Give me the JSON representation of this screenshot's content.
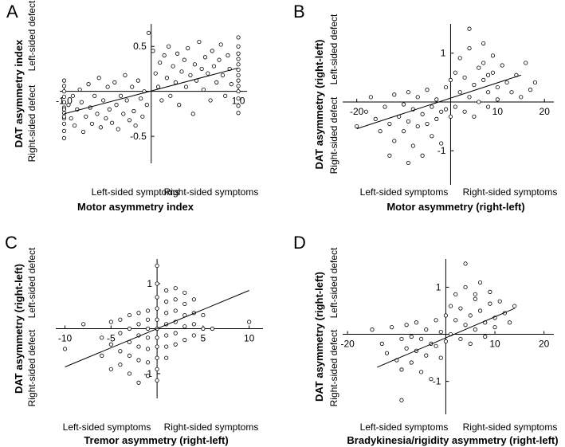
{
  "chart_data": [
    {
      "type": "scatter",
      "panel_label": "A",
      "ylabel": "DAT asymmetry index",
      "xlabel": "Motor asymmetry index",
      "y_pos_note": "Left-sided defect",
      "y_neg_note": "Right-sided defect",
      "x_neg_note": "Left-sided symptoms",
      "x_pos_note": "Right-sided symptoms",
      "xlim": [
        -1.05,
        1.1
      ],
      "ylim": [
        -0.8,
        0.75
      ],
      "x_ticks": [
        {
          "value": -1.0,
          "label": "-1.0"
        },
        {
          "value": 1.0,
          "label": "1.0"
        }
      ],
      "y_ticks": [
        {
          "value": 0.5,
          "label": "0.5"
        },
        {
          "value": -0.5,
          "label": "-0.5"
        }
      ],
      "fit_line": {
        "x": [
          -1.0,
          1.0
        ],
        "y": [
          -0.25,
          0.26
        ]
      },
      "points": [
        [
          -1.0,
          -0.52
        ],
        [
          -1.0,
          -0.44
        ],
        [
          -1.0,
          -0.36
        ],
        [
          -1.0,
          -0.3
        ],
        [
          -1.0,
          -0.24
        ],
        [
          -1.0,
          -0.18
        ],
        [
          -1.0,
          -0.12
        ],
        [
          -1.0,
          -0.06
        ],
        [
          -1.0,
          0.0
        ],
        [
          -1.0,
          0.06
        ],
        [
          -1.0,
          0.12
        ],
        [
          -1.0,
          -0.28
        ],
        [
          -1.0,
          -0.2
        ],
        [
          -0.95,
          -0.15
        ],
        [
          -0.92,
          -0.3
        ],
        [
          -0.9,
          -0.05
        ],
        [
          -0.88,
          -0.38
        ],
        [
          -0.85,
          -0.2
        ],
        [
          -0.82,
          0.02
        ],
        [
          -0.8,
          -0.12
        ],
        [
          -0.78,
          -0.45
        ],
        [
          -0.75,
          -0.28
        ],
        [
          -0.72,
          0.08
        ],
        [
          -0.7,
          -0.18
        ],
        [
          -0.68,
          -0.36
        ],
        [
          -0.65,
          -0.05
        ],
        [
          -0.62,
          -0.25
        ],
        [
          -0.6,
          0.15
        ],
        [
          -0.58,
          -0.4
        ],
        [
          -0.55,
          -0.1
        ],
        [
          -0.52,
          -0.3
        ],
        [
          -0.5,
          0.05
        ],
        [
          -0.48,
          -0.2
        ],
        [
          -0.45,
          -0.35
        ],
        [
          -0.42,
          0.1
        ],
        [
          -0.4,
          -0.15
        ],
        [
          -0.38,
          -0.42
        ],
        [
          -0.35,
          -0.05
        ],
        [
          -0.32,
          -0.25
        ],
        [
          -0.3,
          0.18
        ],
        [
          -0.28,
          -0.1
        ],
        [
          -0.25,
          -0.32
        ],
        [
          -0.22,
          0.05
        ],
        [
          -0.2,
          -0.22
        ],
        [
          -0.18,
          -0.38
        ],
        [
          -0.15,
          0.12
        ],
        [
          -0.12,
          -0.08
        ],
        [
          -0.1,
          -0.28
        ],
        [
          -0.08,
          0.0
        ],
        [
          -0.05,
          -0.15
        ],
        [
          -0.03,
          0.65
        ],
        [
          0.02,
          0.45
        ],
        [
          0.05,
          0.2
        ],
        [
          0.08,
          0.05
        ],
        [
          0.1,
          0.32
        ],
        [
          0.12,
          -0.1
        ],
        [
          0.15,
          0.4
        ],
        [
          0.18,
          0.15
        ],
        [
          0.2,
          0.5
        ],
        [
          0.22,
          -0.05
        ],
        [
          0.25,
          0.28
        ],
        [
          0.28,
          0.1
        ],
        [
          0.3,
          0.42
        ],
        [
          0.32,
          -0.15
        ],
        [
          0.35,
          0.22
        ],
        [
          0.38,
          0.35
        ],
        [
          0.4,
          0.05
        ],
        [
          0.42,
          0.48
        ],
        [
          0.45,
          0.18
        ],
        [
          0.48,
          -0.25
        ],
        [
          0.5,
          0.3
        ],
        [
          0.52,
          0.12
        ],
        [
          0.55,
          0.55
        ],
        [
          0.58,
          0.25
        ],
        [
          0.6,
          0.02
        ],
        [
          0.62,
          0.38
        ],
        [
          0.65,
          0.2
        ],
        [
          0.68,
          -0.1
        ],
        [
          0.7,
          0.45
        ],
        [
          0.72,
          0.28
        ],
        [
          0.75,
          0.1
        ],
        [
          0.78,
          0.35
        ],
        [
          0.8,
          0.52
        ],
        [
          0.82,
          0.18
        ],
        [
          0.85,
          -0.05
        ],
        [
          0.88,
          0.4
        ],
        [
          0.9,
          0.25
        ],
        [
          0.92,
          0.08
        ],
        [
          1.0,
          0.6
        ],
        [
          1.0,
          0.5
        ],
        [
          1.0,
          0.42
        ],
        [
          1.0,
          0.36
        ],
        [
          1.0,
          0.3
        ],
        [
          1.0,
          0.24
        ],
        [
          1.0,
          0.18
        ],
        [
          1.0,
          0.12
        ],
        [
          1.0,
          0.06
        ],
        [
          1.0,
          0.0
        ],
        [
          1.0,
          -0.08
        ],
        [
          1.0,
          -0.16
        ],
        [
          1.0,
          -0.24
        ]
      ]
    },
    {
      "type": "scatter",
      "panel_label": "B",
      "ylabel": "DAT asymmetry (right-left)",
      "xlabel": "Motor asymmetry (right-left)",
      "y_pos_note": "Left-sided defect",
      "y_neg_note": "Right-sided defect",
      "x_neg_note": "Left-sided symptoms",
      "x_pos_note": "Right-sided symptoms",
      "xlim": [
        -23,
        22
      ],
      "ylim": [
        -1.7,
        1.6
      ],
      "x_ticks": [
        {
          "value": -20,
          "label": "-20"
        },
        {
          "value": 10,
          "label": "10"
        },
        {
          "value": 20,
          "label": "20"
        }
      ],
      "y_ticks": [
        {
          "value": 1,
          "label": "1"
        },
        {
          "value": -1,
          "label": "-1"
        }
      ],
      "fit_line": {
        "x": [
          -20,
          15
        ],
        "y": [
          -0.55,
          0.55
        ]
      },
      "points": [
        [
          -20,
          -0.5
        ],
        [
          -18,
          -0.2
        ],
        [
          -17,
          0.1
        ],
        [
          -16,
          -0.35
        ],
        [
          -15,
          -0.6
        ],
        [
          -14,
          -0.1
        ],
        [
          -13,
          -0.45
        ],
        [
          -12,
          0.15
        ],
        [
          -12,
          -0.8
        ],
        [
          -11,
          -0.3
        ],
        [
          -10,
          -0.05
        ],
        [
          -10,
          -0.6
        ],
        [
          -9,
          0.2
        ],
        [
          -9,
          -0.4
        ],
        [
          -8,
          -0.15
        ],
        [
          -8,
          -0.9
        ],
        [
          -7,
          0.1
        ],
        [
          -7,
          -0.5
        ],
        [
          -6,
          -0.25
        ],
        [
          -6,
          -1.1
        ],
        [
          -5,
          0.25
        ],
        [
          -5,
          -0.45
        ],
        [
          -4,
          -0.1
        ],
        [
          -4,
          -0.7
        ],
        [
          -3,
          0.05
        ],
        [
          -3,
          -0.35
        ],
        [
          -2,
          -0.2
        ],
        [
          -2,
          -0.85
        ],
        [
          -1,
          0.3
        ],
        [
          -1,
          -0.15
        ],
        [
          0,
          0.45
        ],
        [
          0,
          -0.3
        ],
        [
          1,
          0.6
        ],
        [
          1,
          -0.1
        ],
        [
          2,
          0.2
        ],
        [
          2,
          0.9
        ],
        [
          3,
          -0.2
        ],
        [
          3,
          0.5
        ],
        [
          4,
          0.1
        ],
        [
          4,
          1.1
        ],
        [
          5,
          0.35
        ],
        [
          5,
          -0.3
        ],
        [
          6,
          0.7
        ],
        [
          6,
          0.0
        ],
        [
          7,
          0.45
        ],
        [
          7,
          1.2
        ],
        [
          8,
          0.2
        ],
        [
          8,
          -0.1
        ],
        [
          9,
          0.6
        ],
        [
          9,
          0.95
        ],
        [
          10,
          0.3
        ],
        [
          10,
          0.05
        ],
        [
          11,
          0.75
        ],
        [
          12,
          0.4
        ],
        [
          13,
          0.2
        ],
        [
          14,
          0.55
        ],
        [
          15,
          0.1
        ],
        [
          16,
          0.8
        ],
        [
          17,
          0.25
        ],
        [
          18,
          0.4
        ],
        [
          4,
          1.5
        ],
        [
          -9,
          -1.25
        ],
        [
          -13,
          -1.1
        ],
        [
          7,
          0.8
        ],
        [
          8,
          0.55
        ]
      ]
    },
    {
      "type": "scatter",
      "panel_label": "C",
      "ylabel": "DAT asymmetry (right-left)",
      "xlabel": "Tremor asymmetry (right-left)",
      "y_pos_note": "Left-sided defect",
      "y_neg_note": "Right-sided defect",
      "x_neg_note": "Left-sided symptoms",
      "x_pos_note": "Right-sided symptoms",
      "xlim": [
        -11,
        11.5
      ],
      "ylim": [
        -1.55,
        1.55
      ],
      "x_ticks": [
        {
          "value": -10,
          "label": "-10"
        },
        {
          "value": -5,
          "label": "-5"
        },
        {
          "value": 5,
          "label": "5"
        },
        {
          "value": 10,
          "label": "10"
        }
      ],
      "y_ticks": [
        {
          "value": 1,
          "label": "1"
        },
        {
          "value": -1,
          "label": "-1"
        }
      ],
      "fit_line": {
        "x": [
          -10,
          10
        ],
        "y": [
          -0.85,
          0.85
        ]
      },
      "points": [
        [
          -10,
          -0.45
        ],
        [
          -8,
          0.1
        ],
        [
          -6,
          -0.2
        ],
        [
          -6,
          -0.6
        ],
        [
          -5,
          0.15
        ],
        [
          -5,
          -0.35
        ],
        [
          -5,
          -0.9
        ],
        [
          -4,
          0.2
        ],
        [
          -4,
          -0.1
        ],
        [
          -4,
          -0.5
        ],
        [
          -4,
          -0.8
        ],
        [
          -3,
          0.3
        ],
        [
          -3,
          0.0
        ],
        [
          -3,
          -0.3
        ],
        [
          -3,
          -0.6
        ],
        [
          -3,
          -1.0
        ],
        [
          -2,
          0.35
        ],
        [
          -2,
          0.1
        ],
        [
          -2,
          -0.15
        ],
        [
          -2,
          -0.4
        ],
        [
          -2,
          -0.7
        ],
        [
          -2,
          -1.2
        ],
        [
          -1,
          0.4
        ],
        [
          -1,
          0.2
        ],
        [
          -1,
          0.0
        ],
        [
          -1,
          -0.2
        ],
        [
          -1,
          -0.45
        ],
        [
          -1,
          -0.75
        ],
        [
          -1,
          -1.05
        ],
        [
          0,
          1.4
        ],
        [
          0,
          1.0
        ],
        [
          0,
          0.7
        ],
        [
          0,
          0.45
        ],
        [
          0,
          0.2
        ],
        [
          0,
          0.0
        ],
        [
          0,
          -0.2
        ],
        [
          0,
          -0.4
        ],
        [
          0,
          -0.65
        ],
        [
          0,
          -0.9
        ],
        [
          0,
          -1.15
        ],
        [
          1,
          0.85
        ],
        [
          1,
          0.6
        ],
        [
          1,
          0.35
        ],
        [
          1,
          0.1
        ],
        [
          1,
          -0.15
        ],
        [
          1,
          -0.4
        ],
        [
          1,
          -0.65
        ],
        [
          2,
          0.9
        ],
        [
          2,
          0.65
        ],
        [
          2,
          0.4
        ],
        [
          2,
          0.15
        ],
        [
          2,
          -0.1
        ],
        [
          2,
          -0.35
        ],
        [
          3,
          0.8
        ],
        [
          3,
          0.55
        ],
        [
          3,
          0.3
        ],
        [
          3,
          0.05
        ],
        [
          3,
          -0.25
        ],
        [
          4,
          0.65
        ],
        [
          4,
          0.35
        ],
        [
          4,
          0.1
        ],
        [
          4,
          -0.15
        ],
        [
          5,
          0.3
        ],
        [
          5,
          0.0
        ],
        [
          6,
          0.0
        ],
        [
          10,
          0.15
        ]
      ]
    },
    {
      "type": "scatter",
      "panel_label": "D",
      "ylabel": "DAT asymmetry (right-left)",
      "xlabel": "Bradykinesia/rigidity asymmetry (right-left)",
      "y_pos_note": "Left-sided defect",
      "y_neg_note": "Right-sided defect",
      "x_neg_note": "Left-sided symptoms",
      "x_pos_note": "Right-sided symptoms",
      "xlim": [
        -21,
        22
      ],
      "ylim": [
        -1.7,
        1.6
      ],
      "x_ticks": [
        {
          "value": -20,
          "label": "-20"
        },
        {
          "value": 10,
          "label": "10"
        },
        {
          "value": 20,
          "label": "20"
        }
      ],
      "y_ticks": [
        {
          "value": 1,
          "label": "1"
        },
        {
          "value": -1,
          "label": "-1"
        }
      ],
      "fit_line": {
        "x": [
          -14,
          14
        ],
        "y": [
          -0.7,
          0.55
        ]
      },
      "points": [
        [
          -15,
          0.1
        ],
        [
          -13,
          -0.2
        ],
        [
          -12,
          -0.4
        ],
        [
          -11,
          0.15
        ],
        [
          -10,
          -0.55
        ],
        [
          -9,
          -0.1
        ],
        [
          -9,
          -0.75
        ],
        [
          -8,
          0.2
        ],
        [
          -8,
          -0.3
        ],
        [
          -7,
          -0.05
        ],
        [
          -7,
          -0.6
        ],
        [
          -6,
          0.25
        ],
        [
          -6,
          -0.35
        ],
        [
          -5,
          -0.1
        ],
        [
          -5,
          -0.8
        ],
        [
          -4,
          0.1
        ],
        [
          -4,
          -0.45
        ],
        [
          -3,
          -0.2
        ],
        [
          -3,
          -0.95
        ],
        [
          -2,
          0.3
        ],
        [
          -2,
          -0.25
        ],
        [
          -1,
          0.05
        ],
        [
          -1,
          -0.5
        ],
        [
          0,
          0.4
        ],
        [
          0,
          -0.15
        ],
        [
          1,
          0.6
        ],
        [
          1,
          0.0
        ],
        [
          2,
          0.3
        ],
        [
          2,
          0.85
        ],
        [
          3,
          -0.1
        ],
        [
          3,
          0.55
        ],
        [
          4,
          0.2
        ],
        [
          4,
          1.0
        ],
        [
          5,
          0.4
        ],
        [
          5,
          -0.2
        ],
        [
          6,
          0.75
        ],
        [
          6,
          0.1
        ],
        [
          7,
          0.5
        ],
        [
          7,
          1.1
        ],
        [
          8,
          0.25
        ],
        [
          8,
          -0.05
        ],
        [
          9,
          0.65
        ],
        [
          9,
          0.9
        ],
        [
          10,
          0.35
        ],
        [
          10,
          0.15
        ],
        [
          11,
          0.7
        ],
        [
          12,
          0.45
        ],
        [
          13,
          0.25
        ],
        [
          14,
          0.6
        ],
        [
          4,
          1.5
        ],
        [
          -9,
          -1.4
        ],
        [
          6,
          0.85
        ]
      ]
    }
  ]
}
